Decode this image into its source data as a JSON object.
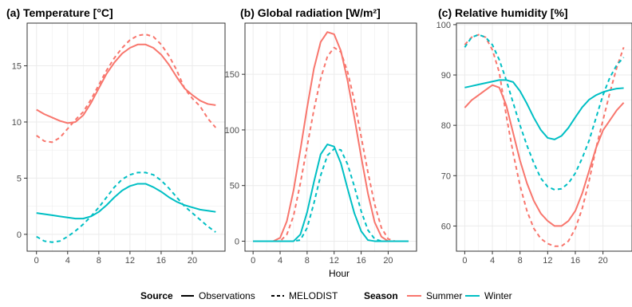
{
  "figure": {
    "xlabel": "Hour",
    "legend": {
      "source_title": "Source",
      "source_items": [
        "Observations",
        "MELODIST"
      ],
      "season_title": "Season",
      "season_items": [
        "Summer",
        "Winter"
      ],
      "position": "bottom"
    },
    "colors": {
      "Summer": "#F8766D",
      "Winter": "#00BFC4",
      "grid": "#ebebeb",
      "panel_border": "#333333"
    },
    "linestyles": {
      "Observations": "solid",
      "MELODIST": "dashed"
    }
  },
  "chart_data": [
    {
      "type": "line",
      "title": "(a) Temperature [°C]",
      "xlabel": "",
      "ylabel": "",
      "x": [
        0,
        1,
        2,
        3,
        4,
        5,
        6,
        7,
        8,
        9,
        10,
        11,
        12,
        13,
        14,
        15,
        16,
        17,
        18,
        19,
        20,
        21,
        22,
        23
      ],
      "xlim": [
        -1.2,
        24.2
      ],
      "ylim": [
        -1.5,
        18.8
      ],
      "xticks": [
        0,
        4,
        8,
        12,
        16,
        20
      ],
      "yticks": [
        0,
        5,
        10,
        15
      ],
      "grid": true,
      "series": [
        {
          "name": "Summer Observations",
          "season": "Summer",
          "source": "Observations",
          "values": [
            11.1,
            10.7,
            10.4,
            10.1,
            9.9,
            10.0,
            10.6,
            11.7,
            13.0,
            14.3,
            15.3,
            16.1,
            16.6,
            16.9,
            16.9,
            16.6,
            16.0,
            15.1,
            14.0,
            13.0,
            12.4,
            11.9,
            11.6,
            11.5
          ]
        },
        {
          "name": "Summer MELODIST",
          "season": "Summer",
          "source": "MELODIST",
          "values": [
            8.8,
            8.3,
            8.2,
            8.6,
            9.4,
            10.2,
            10.9,
            12.0,
            13.3,
            14.6,
            15.7,
            16.6,
            17.3,
            17.7,
            17.8,
            17.6,
            16.9,
            15.9,
            14.6,
            13.0,
            12.1,
            11.4,
            10.3,
            9.5
          ]
        },
        {
          "name": "Winter Observations",
          "season": "Winter",
          "source": "Observations",
          "values": [
            1.9,
            1.8,
            1.7,
            1.6,
            1.5,
            1.4,
            1.4,
            1.6,
            2.0,
            2.6,
            3.3,
            3.9,
            4.3,
            4.5,
            4.5,
            4.2,
            3.8,
            3.3,
            2.9,
            2.6,
            2.4,
            2.2,
            2.1,
            2.0
          ]
        },
        {
          "name": "Winter MELODIST",
          "season": "Winter",
          "source": "MELODIST",
          "values": [
            -0.2,
            -0.6,
            -0.7,
            -0.6,
            -0.2,
            0.3,
            0.9,
            1.6,
            2.4,
            3.3,
            4.2,
            4.9,
            5.3,
            5.5,
            5.5,
            5.3,
            4.8,
            4.1,
            3.3,
            2.5,
            1.9,
            1.3,
            0.7,
            0.2
          ]
        }
      ]
    },
    {
      "type": "line",
      "title": "(b) Global radiation [W/m²]",
      "xlabel": "",
      "ylabel": "",
      "x": [
        0,
        1,
        2,
        3,
        4,
        5,
        6,
        7,
        8,
        9,
        10,
        11,
        12,
        13,
        14,
        15,
        16,
        17,
        18,
        19,
        20,
        21,
        22,
        23
      ],
      "xlim": [
        -1.2,
        24.2
      ],
      "ylim": [
        -9,
        196
      ],
      "xticks": [
        0,
        4,
        8,
        12,
        16,
        20
      ],
      "yticks": [
        0,
        50,
        100,
        150
      ],
      "grid": true,
      "series": [
        {
          "name": "Summer Observations",
          "season": "Summer",
          "source": "Observations",
          "values": [
            0,
            0,
            0,
            0,
            3,
            18,
            46,
            82,
            120,
            155,
            179,
            188,
            186,
            171,
            144,
            111,
            76,
            43,
            17,
            4,
            0,
            0,
            0,
            0
          ]
        },
        {
          "name": "Summer MELODIST",
          "season": "Summer",
          "source": "MELODIST",
          "values": [
            0,
            0,
            0,
            0,
            0,
            6,
            23,
            52,
            85,
            118,
            146,
            166,
            174,
            170,
            152,
            126,
            94,
            62,
            33,
            12,
            2,
            0,
            0,
            0
          ]
        },
        {
          "name": "Winter Observations",
          "season": "Winter",
          "source": "Observations",
          "values": [
            0,
            0,
            0,
            0,
            0,
            0,
            0,
            6,
            26,
            53,
            78,
            87,
            85,
            70,
            47,
            25,
            9,
            1,
            0,
            0,
            0,
            0,
            0,
            0
          ]
        },
        {
          "name": "Winter MELODIST",
          "season": "Winter",
          "source": "MELODIST",
          "values": [
            0,
            0,
            0,
            0,
            0,
            0,
            0,
            1,
            12,
            34,
            59,
            77,
            83,
            82,
            69,
            49,
            27,
            10,
            2,
            0,
            0,
            0,
            0,
            0
          ]
        }
      ]
    },
    {
      "type": "line",
      "title": "(c) Relative humidity [%]",
      "xlabel": "",
      "ylabel": "",
      "x": [
        0,
        1,
        2,
        3,
        4,
        5,
        6,
        7,
        8,
        9,
        10,
        11,
        12,
        13,
        14,
        15,
        16,
        17,
        18,
        19,
        20,
        21,
        22,
        23
      ],
      "xlim": [
        -1.2,
        24.2
      ],
      "ylim": [
        55,
        100.3
      ],
      "xticks": [
        0,
        4,
        8,
        12,
        16,
        20
      ],
      "yticks": [
        60,
        70,
        80,
        90,
        100
      ],
      "grid": true,
      "series": [
        {
          "name": "Summer Observations",
          "season": "Summer",
          "source": "Observations",
          "values": [
            83.5,
            85,
            86,
            87,
            88,
            87.5,
            84,
            78.5,
            73,
            68.5,
            65,
            62.5,
            61,
            60,
            60,
            61,
            63,
            66.5,
            71,
            75.5,
            79,
            81,
            83,
            84.5
          ]
        },
        {
          "name": "Summer MELODIST",
          "season": "Summer",
          "source": "MELODIST",
          "values": [
            96,
            97.5,
            98,
            97.5,
            95,
            90.5,
            82,
            74.5,
            68,
            63,
            59.5,
            57.5,
            56.5,
            56,
            56,
            57,
            59.5,
            63.5,
            69,
            75.5,
            81,
            86.5,
            91.5,
            95.5
          ]
        },
        {
          "name": "Winter Observations",
          "season": "Winter",
          "source": "Observations",
          "values": [
            87.5,
            87.8,
            88.1,
            88.4,
            88.7,
            89,
            89,
            88.6,
            86.8,
            84.3,
            81.5,
            79.1,
            77.5,
            77.2,
            77.9,
            79.5,
            81.6,
            83.6,
            85.1,
            86,
            86.6,
            87,
            87.3,
            87.4
          ]
        },
        {
          "name": "Winter MELODIST",
          "season": "Winter",
          "source": "MELODIST",
          "values": [
            95.5,
            97.5,
            98,
            97.5,
            96,
            93,
            89,
            84.5,
            80,
            76,
            72.5,
            69.5,
            67.8,
            67.2,
            67.4,
            68.5,
            70.5,
            73.5,
            77,
            81.5,
            86,
            89.5,
            92,
            93.5
          ]
        }
      ]
    }
  ]
}
